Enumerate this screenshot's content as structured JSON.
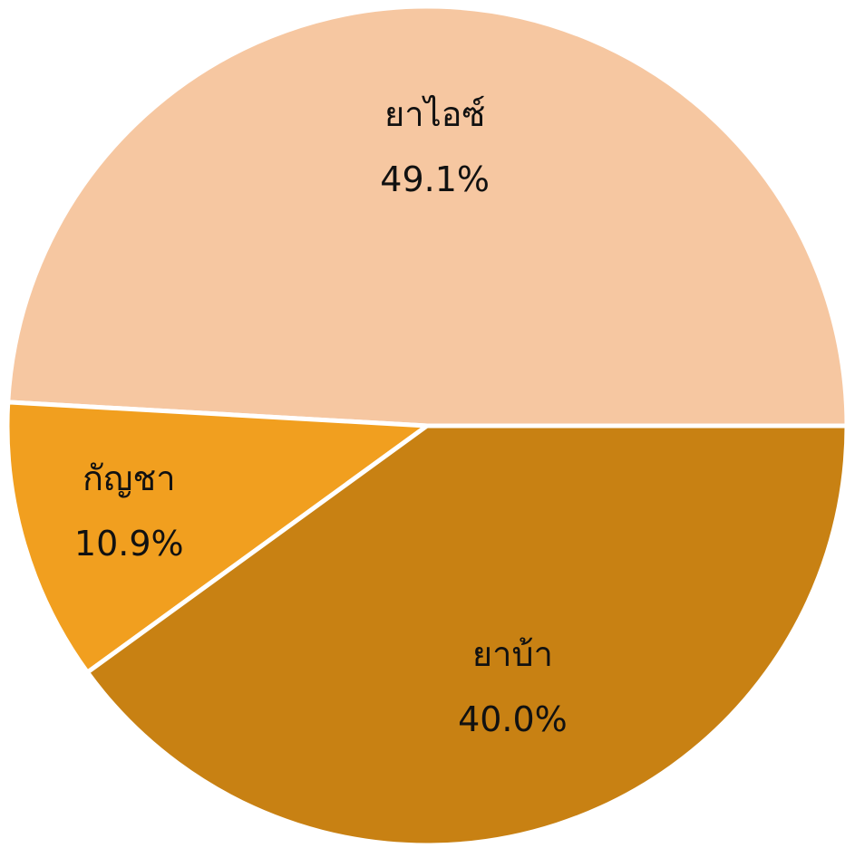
{
  "chart_data": {
    "type": "pie",
    "categories": [
      "ยาไอซ์",
      "กัญชา",
      "ยาบ้า"
    ],
    "values": [
      49.1,
      10.9,
      40.0
    ],
    "value_labels": [
      "49.1%",
      "10.9%",
      "40.0%"
    ],
    "colors": [
      "#f6c7a1",
      "#f19f1f",
      "#c88113"
    ]
  }
}
